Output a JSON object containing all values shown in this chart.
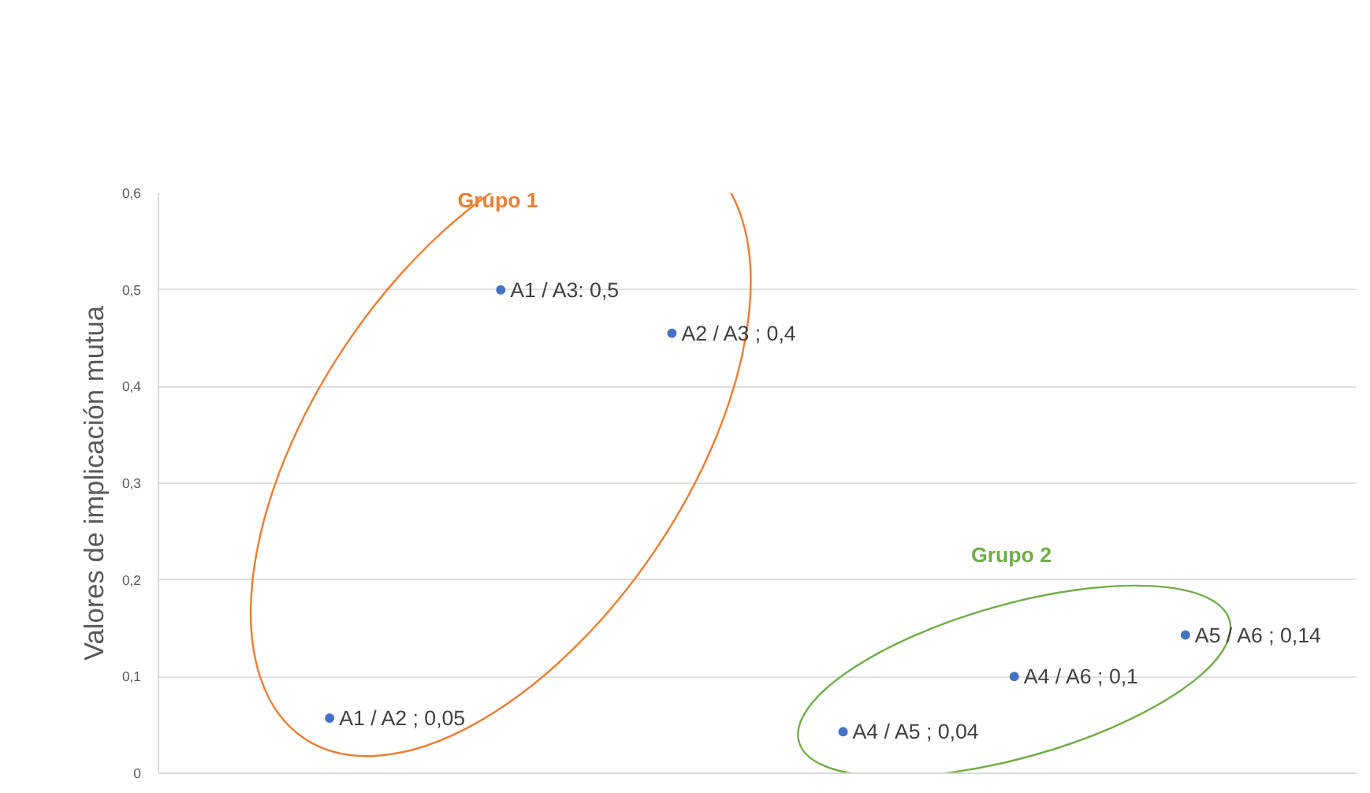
{
  "chart_data": {
    "type": "scatter",
    "ylabel": "Valores de implicación mutua",
    "ylim": [
      0,
      0.6
    ],
    "categories": [
      null,
      null,
      null,
      null,
      null,
      null
    ],
    "yticks": [
      0,
      {
        "value": 0.1,
        "label": "0,1"
      },
      {
        "value": 0.2,
        "label": "0,2"
      },
      {
        "value": 0.3,
        "label": "0,3"
      },
      {
        "value": 0.4,
        "label": "0,4"
      },
      {
        "value": 0.5,
        "label": "0,5"
      },
      {
        "value": 0.6,
        "label": "0,6"
      }
    ],
    "tick_labels": "y",
    "grid": "y",
    "marker": "circle",
    "annotations": [
      "Grupo  1",
      "Grupo  2"
    ],
    "series": [
      {
        "color": "#4472c4",
        "values": [
          0.057,
          0.5,
          0.455,
          null,
          null,
          null
        ],
        "value_labels": [
          "A1 / A2 ; 0,05",
          "A1 / A3: 0,5",
          "A2 / A3 ; 0,4",
          null,
          null,
          null
        ]
      },
      {
        "color": "#4472c4",
        "values": [
          null,
          null,
          null,
          0.043,
          0.1,
          0.143
        ],
        "value_labels": [
          null,
          null,
          null,
          "A4 / A5 ; 0,04",
          "A4 / A6 ; 0,1",
          "A5 / A6 ; 0,14"
        ]
      }
    ]
  }
}
